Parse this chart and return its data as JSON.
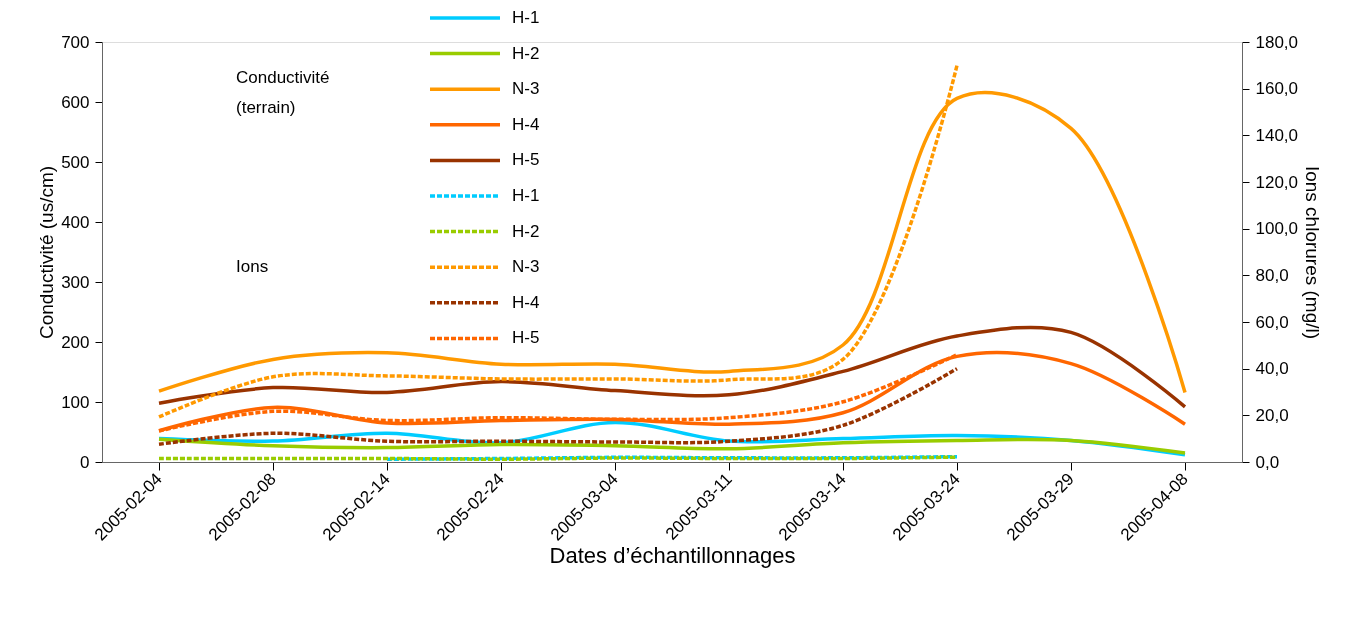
{
  "chart_data": {
    "type": "line",
    "xlabel": "Dates d’échantillonnages",
    "ylabel": "Conductivité (us/cm)",
    "y2label": "Ions chlorures (mg/l)",
    "categories": [
      "2005-02-04",
      "2005-02-08",
      "2005-02-14",
      "2005-02-24",
      "2005-03-04",
      "2005-03-11",
      "2005-03-14",
      "2005-03-24",
      "2005-03-29",
      "2005-04-08"
    ],
    "ylim": [
      0,
      700
    ],
    "yticks": [
      0,
      100,
      200,
      300,
      400,
      500,
      600,
      700
    ],
    "y2lim": [
      0,
      180
    ],
    "y2ticks": [
      {
        "value": 0,
        "label": "0,0"
      },
      {
        "value": 20,
        "label": "20,0"
      },
      {
        "value": 40,
        "label": "40,0"
      },
      {
        "value": 60,
        "label": "60,0"
      },
      {
        "value": 80,
        "label": "80,0"
      },
      {
        "value": 100,
        "label": "100,0"
      },
      {
        "value": 120,
        "label": "120,0"
      },
      {
        "value": 140,
        "label": "140,0"
      },
      {
        "value": 160,
        "label": "160,0"
      },
      {
        "value": 180,
        "label": "180,0"
      }
    ],
    "grid": false,
    "legend": "top",
    "marker": "none",
    "annotations": [
      "Conductivité (terrain)",
      "Ions"
    ],
    "series": [
      {
        "name": "H-1",
        "color": "#00ccff",
        "line_style": "solid",
        "axis": "y",
        "values": [
          39,
          35,
          48,
          32,
          66,
          35,
          39,
          44,
          36,
          12
        ]
      },
      {
        "name": "H-2",
        "color": "#99cc00",
        "line_style": "solid",
        "axis": "y",
        "values": [
          38,
          27,
          24,
          29,
          27,
          22,
          32,
          36,
          36,
          15
        ]
      },
      {
        "name": "N-3",
        "color": "#ff9900",
        "line_style": "solid",
        "axis": "y",
        "values": [
          118,
          171,
          182,
          163,
          163,
          151,
          195,
          606,
          556,
          116
        ]
      },
      {
        "name": "H-4",
        "color": "#ff6600",
        "line_style": "solid",
        "axis": "y",
        "values": [
          52,
          91,
          65,
          69,
          71,
          63,
          82,
          176,
          164,
          63
        ]
      },
      {
        "name": "H-5",
        "color": "#993300",
        "line_style": "solid",
        "axis": "y",
        "values": [
          98,
          124,
          116,
          134,
          119,
          112,
          151,
          210,
          216,
          92
        ]
      },
      {
        "name": "H-1",
        "color": "#00ccff",
        "line_style": "dashed",
        "axis": "y2",
        "values": [
          null,
          null,
          1.2,
          1.5,
          2.0,
          1.8,
          1.8,
          2.3,
          null,
          null
        ]
      },
      {
        "name": "H-2",
        "color": "#99cc00",
        "line_style": "dashed",
        "axis": "y2",
        "values": [
          1.5,
          1.5,
          1.5,
          1.2,
          1.7,
          1.5,
          1.5,
          2.1,
          null,
          null
        ]
      },
      {
        "name": "N-3",
        "color": "#ff9900",
        "line_style": "dashed",
        "axis": "y2",
        "values": [
          19.3,
          36.5,
          36.9,
          35.6,
          35.6,
          35.2,
          44.0,
          170.0,
          null,
          null
        ]
      },
      {
        "name": "H-4",
        "color": "#993300",
        "line_style": "dashed",
        "axis": "y2",
        "values": [
          7.6,
          12.3,
          8.9,
          8.9,
          8.6,
          8.9,
          15.7,
          40.0,
          null,
          null
        ]
      },
      {
        "name": "H-5",
        "color": "#ff6600",
        "line_style": "dashed",
        "axis": "y2",
        "values": [
          13.3,
          21.7,
          17.8,
          19.0,
          18.3,
          19.0,
          25.8,
          46.0,
          null,
          null
        ]
      }
    ]
  }
}
